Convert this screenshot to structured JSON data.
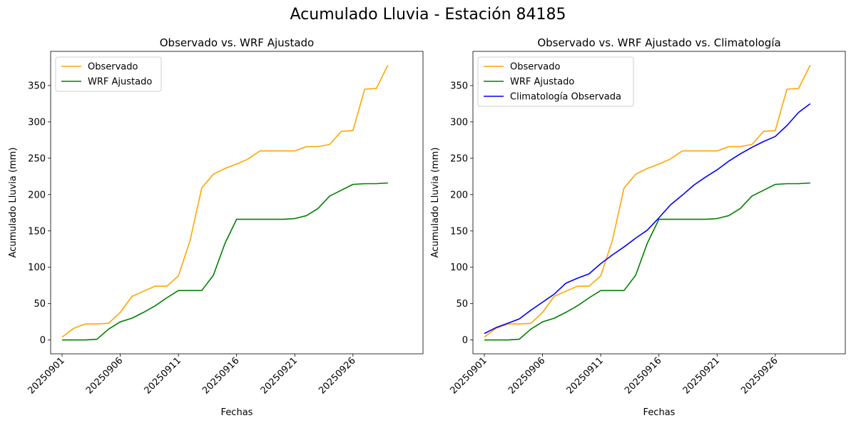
{
  "figure": {
    "title": "Acumulado Lluvia - Estación 84185"
  },
  "chart_data": [
    {
      "type": "line",
      "title": "Observado vs. WRF Ajustado",
      "xlabel": "Fechas",
      "ylabel": "Acumulado Lluvia (mm)",
      "x_start": "20250901",
      "x_ticks": [
        "20250901",
        "20250906",
        "20250911",
        "20250916",
        "20250921",
        "20250926"
      ],
      "y_ticks": [
        0,
        50,
        100,
        150,
        200,
        250,
        300,
        350
      ],
      "ylim": [
        -19,
        397
      ],
      "xlim": [
        0,
        29
      ],
      "grid": false,
      "legend": "top-left",
      "series": [
        {
          "name": "Observado",
          "color": "#ffa500",
          "values": [
            4,
            16,
            22,
            22,
            23,
            38,
            60,
            67,
            74,
            74,
            88,
            137,
            209,
            228,
            236,
            242,
            249,
            260,
            260,
            260,
            260,
            266,
            266,
            269,
            287,
            288,
            345,
            346,
            378
          ]
        },
        {
          "name": "WRF Ajustado",
          "color": "#008000",
          "values": [
            0,
            0,
            0,
            1,
            15,
            25,
            30,
            38,
            47,
            58,
            68,
            68,
            68,
            89,
            133,
            166,
            166,
            166,
            166,
            166,
            167,
            171,
            181,
            198,
            206,
            214,
            215,
            215,
            216
          ]
        }
      ]
    },
    {
      "type": "line",
      "title": "Observado vs. WRF Ajustado vs. Climatología",
      "xlabel": "Fechas",
      "ylabel": "Acumulado Lluvia (mm)",
      "x_start": "20250901",
      "x_ticks": [
        "20250901",
        "20250906",
        "20250911",
        "20250916",
        "20250921",
        "20250926"
      ],
      "y_ticks": [
        0,
        50,
        100,
        150,
        200,
        250,
        300,
        350
      ],
      "ylim": [
        -19,
        397
      ],
      "xlim": [
        0,
        29
      ],
      "grid": false,
      "legend": "top-left",
      "series": [
        {
          "name": "Observado",
          "color": "#ffa500",
          "values": [
            4,
            16,
            22,
            22,
            23,
            38,
            60,
            67,
            74,
            74,
            88,
            137,
            209,
            228,
            236,
            242,
            249,
            260,
            260,
            260,
            260,
            266,
            266,
            269,
            287,
            288,
            345,
            346,
            378
          ]
        },
        {
          "name": "WRF Ajustado",
          "color": "#008000",
          "values": [
            0,
            0,
            0,
            1,
            15,
            25,
            30,
            38,
            47,
            58,
            68,
            68,
            68,
            89,
            133,
            166,
            166,
            166,
            166,
            166,
            167,
            171,
            181,
            198,
            206,
            214,
            215,
            215,
            216
          ]
        },
        {
          "name": "Climatología Observada",
          "color": "#0000ff",
          "values": [
            9,
            17,
            23,
            29,
            41,
            52,
            63,
            78,
            85,
            91,
            105,
            117,
            128,
            140,
            151,
            168,
            186,
            199,
            213,
            224,
            234,
            246,
            256,
            265,
            273,
            280,
            295,
            313,
            325
          ]
        }
      ]
    }
  ]
}
